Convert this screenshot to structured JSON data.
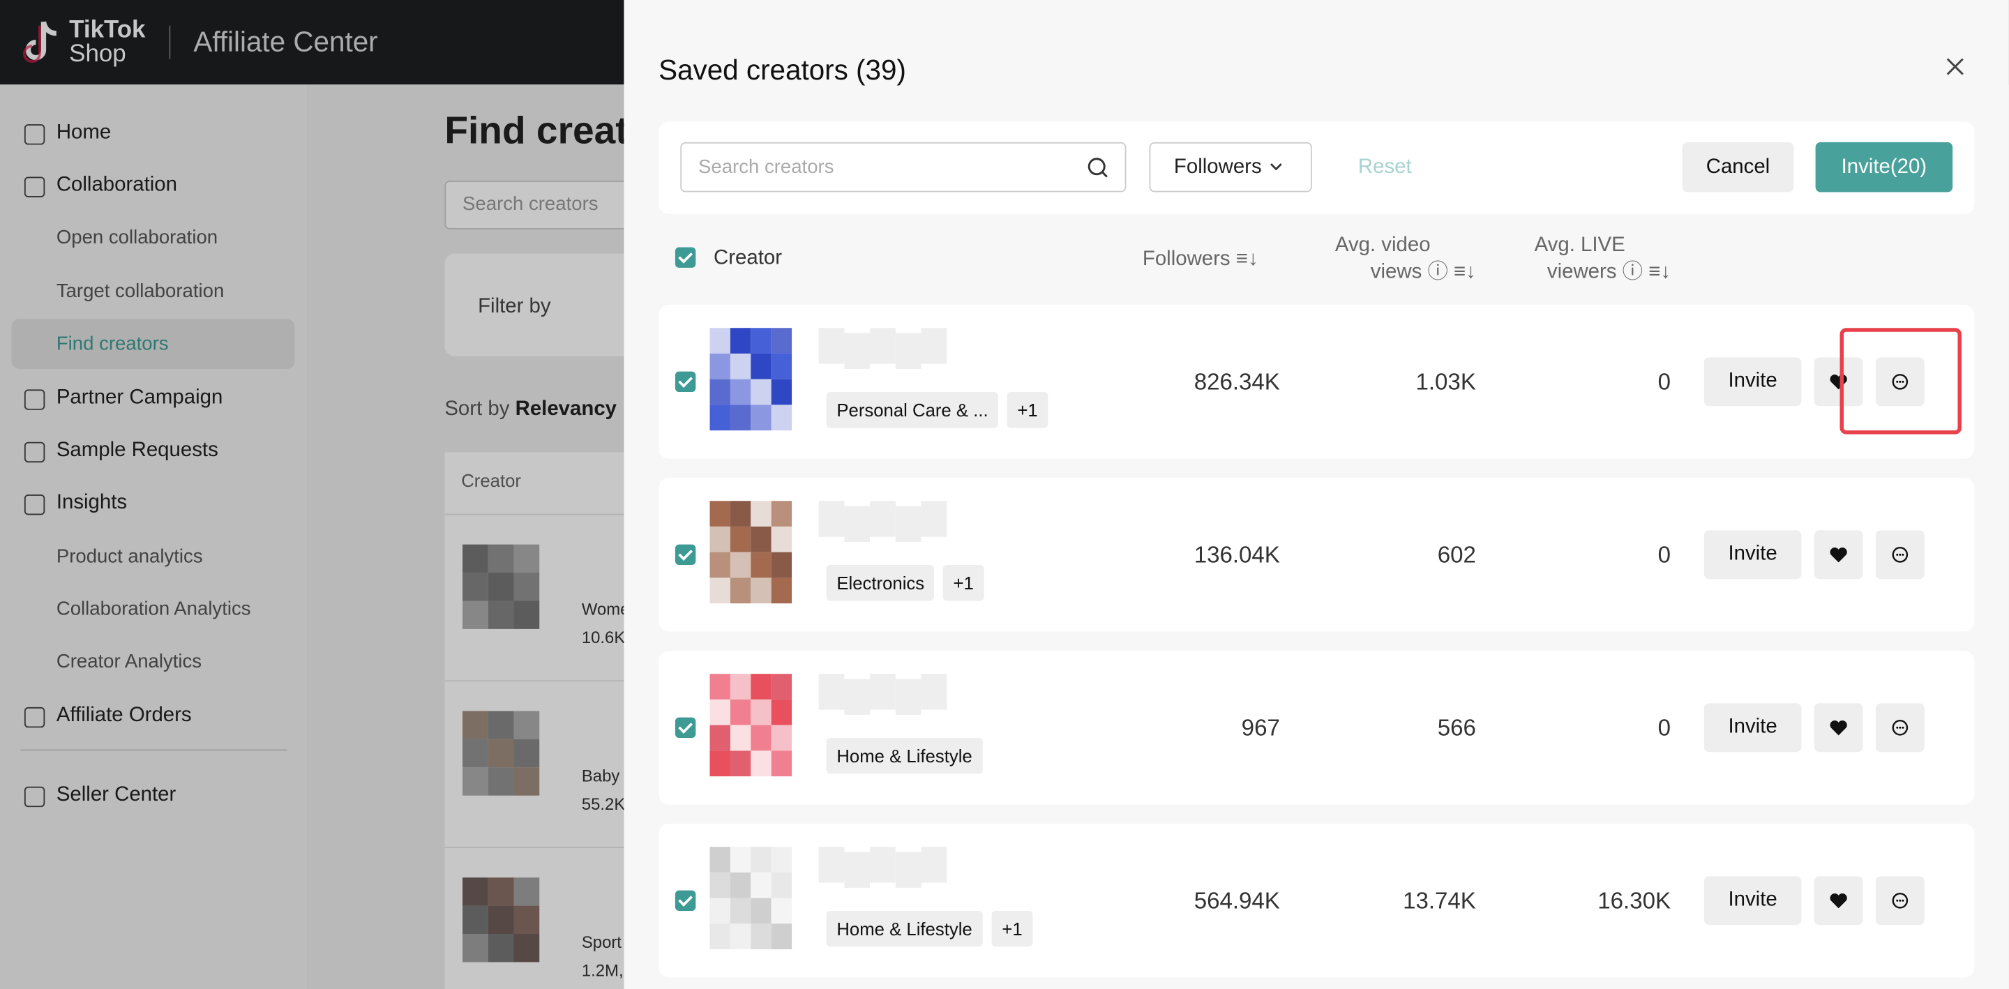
{
  "header": {
    "brand_line1": "TikTok",
    "brand_line2": "Shop",
    "product": "Affiliate Center"
  },
  "sidebar": {
    "items": [
      "Home",
      "Collaboration",
      "Open collaboration",
      "Target collaboration",
      "Find creators",
      "Partner Campaign",
      "Sample Requests",
      "Insights",
      "Product analytics",
      "Collaboration Analytics",
      "Creator Analytics",
      "Affiliate Orders",
      "Seller Center"
    ]
  },
  "background": {
    "title": "Find creat",
    "search_placeholder": "Search creators",
    "filter_label": "Filter by",
    "sort_prefix": "Sort by",
    "sort_value": "Relevancy",
    "column": "Creator",
    "rows": [
      {
        "category": "Wome",
        "followers": "10.6K"
      },
      {
        "category": "Baby",
        "followers": "55.2K"
      },
      {
        "category": "Sport",
        "followers": "1.2M,"
      }
    ]
  },
  "modal": {
    "title": "Saved creators (39)",
    "search_placeholder": "Search creators",
    "followers_filter": "Followers",
    "reset": "Reset",
    "cancel": "Cancel",
    "invite_all": "Invite(20)",
    "columns": {
      "creator": "Creator",
      "followers": "Followers",
      "video_views_line1": "Avg. video",
      "video_views_line2": "views",
      "live_viewers_line1": "Avg. LIVE",
      "live_viewers_line2": "viewers"
    },
    "invite": "Invite",
    "rows": [
      {
        "tags": [
          "Personal Care & ...",
          "+1"
        ],
        "followers": "826.34K",
        "video_views": "1.03K",
        "live_viewers": "0"
      },
      {
        "tags": [
          "Electronics",
          "+1"
        ],
        "followers": "136.04K",
        "video_views": "602",
        "live_viewers": "0"
      },
      {
        "tags": [
          "Home & Lifestyle"
        ],
        "followers": "967",
        "video_views": "566",
        "live_viewers": "0"
      },
      {
        "tags": [
          "Home & Lifestyle",
          "+1"
        ],
        "followers": "564.94K",
        "video_views": "13.74K",
        "live_viewers": "16.30K"
      }
    ]
  }
}
